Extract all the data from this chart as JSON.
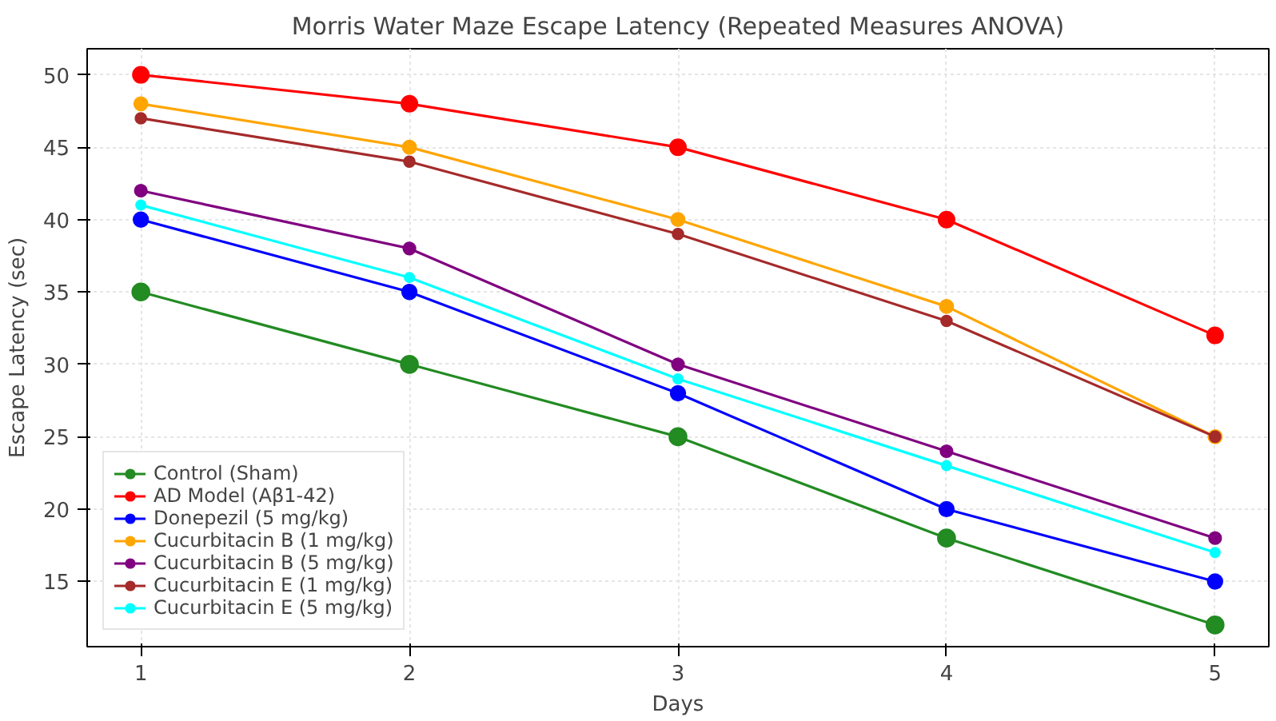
{
  "chart_data": {
    "type": "line",
    "title": "Morris Water Maze Escape Latency (Repeated Measures ANOVA)",
    "xlabel": "Days",
    "ylabel": "Escape Latency (sec)",
    "x": [
      1,
      2,
      3,
      4,
      5
    ],
    "xlim": [
      0.8,
      5.2
    ],
    "xticks": [
      1,
      2,
      3,
      4,
      5
    ],
    "ylim": [
      10.5,
      51.8
    ],
    "yticks": [
      15,
      20,
      25,
      30,
      35,
      40,
      45,
      50
    ],
    "grid": true,
    "legend": "bottom left",
    "marker": "circle",
    "line_style": "solid",
    "series": [
      {
        "name": "Control (Sham)",
        "color": "#228b22",
        "values": [
          35,
          30,
          25,
          18,
          12
        ]
      },
      {
        "name": "AD Model (Aβ1-42)",
        "color": "#ff0000",
        "values": [
          50,
          48,
          45,
          40,
          32
        ]
      },
      {
        "name": "Donepezil (5 mg/kg)",
        "color": "#0000ff",
        "values": [
          40,
          35,
          28,
          20,
          15
        ]
      },
      {
        "name": "Cucurbitacin B (1 mg/kg)",
        "color": "#ffa500",
        "values": [
          48,
          45,
          40,
          34,
          25
        ]
      },
      {
        "name": "Cucurbitacin B (5 mg/kg)",
        "color": "#800080",
        "values": [
          42,
          38,
          30,
          24,
          18
        ]
      },
      {
        "name": "Cucurbitacin E (1 mg/kg)",
        "color": "#a52a2a",
        "values": [
          47,
          44,
          39,
          33,
          25
        ]
      },
      {
        "name": "Cucurbitacin E (5 mg/kg)",
        "color": "#00ffff",
        "values": [
          41,
          36,
          29,
          23,
          17
        ]
      }
    ]
  }
}
